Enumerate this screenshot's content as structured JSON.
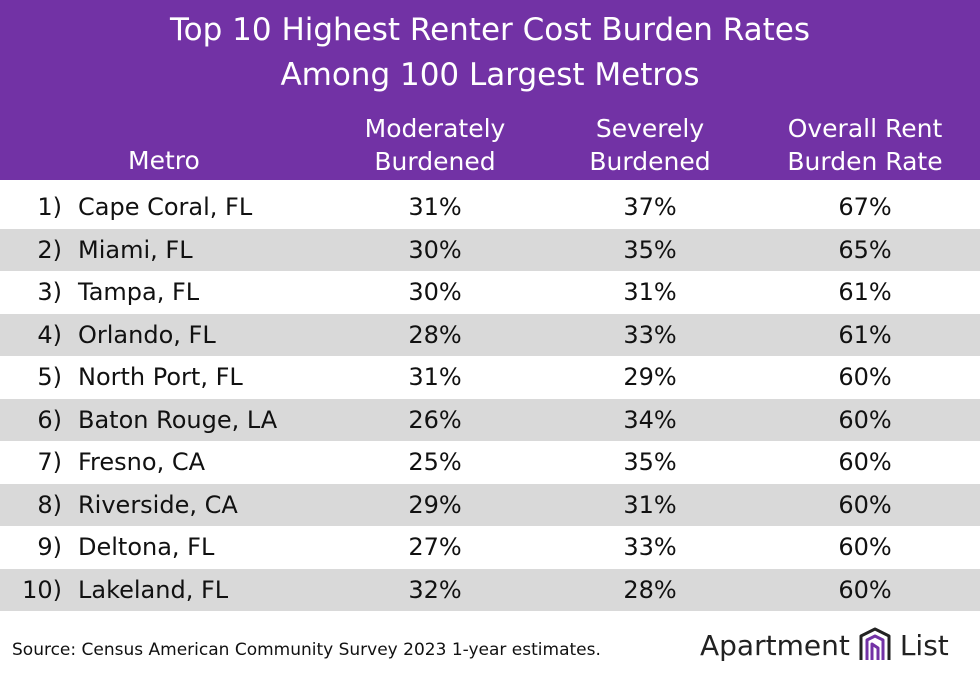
{
  "chart_data": {
    "type": "table",
    "title": "Top 10 Highest Renter Cost Burden Rates",
    "subtitle": "Among 100 Largest Metros",
    "columns": {
      "metro": "Metro",
      "moderate_line1": "Moderately",
      "moderate_line2": "Burdened",
      "severe_line1": "Severely",
      "severe_line2": "Burdened",
      "overall_line1": "Overall Rent",
      "overall_line2": "Burden Rate"
    },
    "rows": [
      {
        "rank": "1)",
        "metro": "Cape Coral, FL",
        "moderate": "31%",
        "severe": "37%",
        "overall": "67%"
      },
      {
        "rank": "2)",
        "metro": "Miami, FL",
        "moderate": "30%",
        "severe": "35%",
        "overall": "65%"
      },
      {
        "rank": "3)",
        "metro": "Tampa, FL",
        "moderate": "30%",
        "severe": "31%",
        "overall": "61%"
      },
      {
        "rank": "4)",
        "metro": "Orlando, FL",
        "moderate": "28%",
        "severe": "33%",
        "overall": "61%"
      },
      {
        "rank": "5)",
        "metro": "North Port, FL",
        "moderate": "31%",
        "severe": "29%",
        "overall": "60%"
      },
      {
        "rank": "6)",
        "metro": "Baton Rouge, LA",
        "moderate": "26%",
        "severe": "34%",
        "overall": "60%"
      },
      {
        "rank": "7)",
        "metro": "Fresno, CA",
        "moderate": "25%",
        "severe": "35%",
        "overall": "60%"
      },
      {
        "rank": "8)",
        "metro": "Riverside, CA",
        "moderate": "29%",
        "severe": "31%",
        "overall": "60%"
      },
      {
        "rank": "9)",
        "metro": "Deltona, FL",
        "moderate": "27%",
        "severe": "33%",
        "overall": "60%"
      },
      {
        "rank": "10)",
        "metro": "Lakeland, FL",
        "moderate": "32%",
        "severe": "28%",
        "overall": "60%"
      }
    ],
    "values_moderate": [
      31,
      30,
      30,
      28,
      31,
      26,
      25,
      29,
      27,
      32
    ],
    "values_severe": [
      37,
      35,
      31,
      33,
      29,
      34,
      35,
      31,
      33,
      28
    ],
    "values_overall": [
      67,
      65,
      61,
      61,
      60,
      60,
      60,
      60,
      60,
      60
    ]
  },
  "footer": {
    "source": "Source: Census American Community Survey 2023 1-year estimates.",
    "logo_word1": "Apartment",
    "logo_word2": "List",
    "logo_icon": "apartment-list-logo-icon"
  },
  "colors": {
    "header_bg": "#7232a5",
    "row_alt": "#d9d9d9",
    "logo_purple": "#7232a5"
  }
}
